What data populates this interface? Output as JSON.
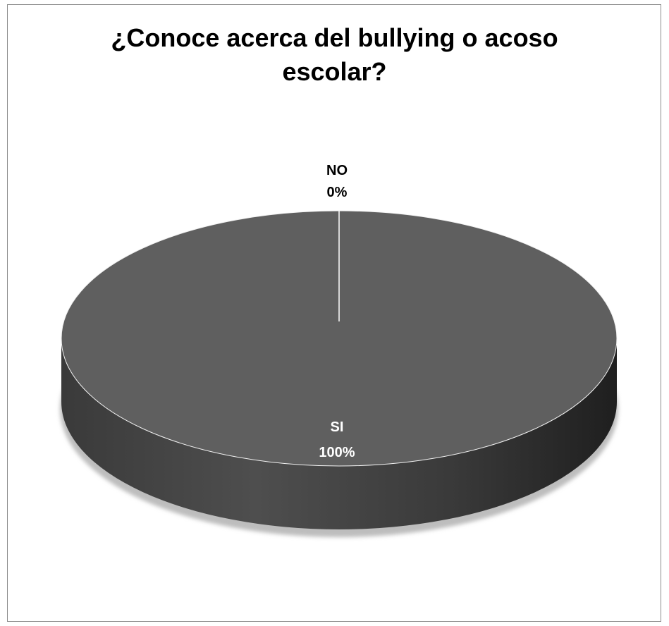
{
  "chart_data": {
    "type": "pie",
    "title_lines": [
      "¿Conoce acerca del bullying o acoso",
      "escolar?"
    ],
    "categories": [
      "NO",
      "SI"
    ],
    "values": [
      0,
      100
    ],
    "labels": [
      {
        "category": "NO",
        "percent": "0%"
      },
      {
        "category": "SI",
        "percent": "100%"
      }
    ],
    "colors": {
      "slice_top": "#5f5f5f",
      "slice_side_dark": "#262626",
      "slice_side_mid": "#4a4a4a",
      "label_no": "#000000",
      "label_si": "#ffffff"
    }
  }
}
